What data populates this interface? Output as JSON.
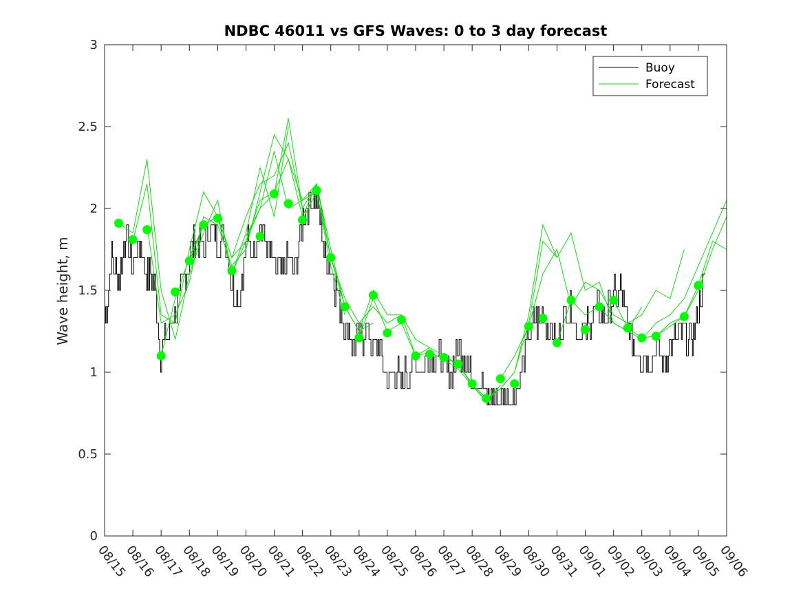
{
  "chart_data": {
    "type": "line",
    "title": "NDBC 46011 vs GFS Waves: 0 to 3 day forecast",
    "xlabel": "",
    "ylabel": "Wave height, m",
    "xlim": [
      0,
      22
    ],
    "ylim": [
      0,
      3
    ],
    "yticks": [
      0,
      0.5,
      1,
      1.5,
      2,
      2.5,
      3
    ],
    "ytick_labels": [
      "0",
      "0.5",
      "1",
      "1.5",
      "2",
      "2.5",
      "3"
    ],
    "xticks": [
      0,
      1,
      2,
      3,
      4,
      5,
      6,
      7,
      8,
      9,
      10,
      11,
      12,
      13,
      14,
      15,
      16,
      17,
      18,
      19,
      20,
      21,
      22
    ],
    "xtick_labels": [
      "08/15",
      "08/16",
      "08/17",
      "08/18",
      "08/19",
      "08/20",
      "08/21",
      "08/22",
      "08/23",
      "08/24",
      "08/25",
      "08/26",
      "08/27",
      "08/28",
      "08/29",
      "08/30",
      "08/31",
      "09/01",
      "09/02",
      "09/03",
      "09/04",
      "09/05",
      "09/06"
    ],
    "legend": {
      "position": "top-right",
      "entries": [
        {
          "label": "Buoy",
          "color": "#000000"
        },
        {
          "label": "Forecast",
          "color": "#00e000"
        }
      ]
    },
    "colors": {
      "buoy": "#000000",
      "forecast": "#00ff00",
      "forecast_line": "#11dd11"
    },
    "buoy_series": {
      "name": "Buoy",
      "x": [
        0,
        0.25,
        0.5,
        0.75,
        1,
        1.25,
        1.5,
        1.75,
        2,
        2.25,
        2.5,
        2.75,
        3,
        3.25,
        3.5,
        3.75,
        4,
        4.25,
        4.5,
        4.75,
        5,
        5.25,
        5.5,
        5.75,
        6,
        6.25,
        6.5,
        6.75,
        7,
        7.25,
        7.5,
        7.75,
        8,
        8.25,
        8.5,
        8.75,
        9,
        9.25,
        9.5,
        9.75,
        10,
        10.25,
        10.5,
        10.75,
        11,
        11.25,
        11.5,
        11.75,
        12,
        12.25,
        12.5,
        12.75,
        13,
        13.25,
        13.5,
        13.75,
        14,
        14.25,
        14.5,
        14.75,
        15,
        15.25,
        15.5,
        15.75,
        16,
        16.25,
        16.5,
        16.75,
        17,
        17.25,
        17.5,
        17.75,
        18,
        18.25,
        18.5,
        18.75,
        19,
        19.25,
        19.5,
        19.75,
        20,
        20.25,
        20.5,
        20.75,
        21,
        21.25
      ],
      "y": [
        1.3,
        1.7,
        1.55,
        1.85,
        1.65,
        1.8,
        1.6,
        1.55,
        1.1,
        1.25,
        1.35,
        1.5,
        1.7,
        1.8,
        1.75,
        1.9,
        1.75,
        1.85,
        1.5,
        1.45,
        1.8,
        1.75,
        1.9,
        1.75,
        1.65,
        1.6,
        1.7,
        1.6,
        1.95,
        2.05,
        2.1,
        1.75,
        1.65,
        1.45,
        1.3,
        1.2,
        1.2,
        1.25,
        1.15,
        1.15,
        0.95,
        1.0,
        0.95,
        1.0,
        1.05,
        1.0,
        1.1,
        1.1,
        1.05,
        1.0,
        1.15,
        1.1,
        0.95,
        0.95,
        0.85,
        0.85,
        0.85,
        0.85,
        0.85,
        1.0,
        1.25,
        1.3,
        1.35,
        1.25,
        1.2,
        1.35,
        1.4,
        1.25,
        1.25,
        1.35,
        1.4,
        1.35,
        1.45,
        1.5,
        1.3,
        1.15,
        1.1,
        1.1,
        1.15,
        1.05,
        1.15,
        1.2,
        1.25,
        1.2,
        1.4,
        1.6
      ]
    },
    "forecast_series": [
      {
        "name": "Forecast",
        "x": [
          0.5,
          1.0,
          1.5,
          2.0,
          2.5,
          3.0,
          3.5,
          4.0,
          4.5,
          5.0,
          5.5,
          6.0,
          6.5
        ],
        "y": [
          1.91,
          1.85,
          2.3,
          1.5,
          1.2,
          1.6,
          1.85,
          2.05,
          1.6,
          1.85,
          2.25,
          1.95,
          2.5
        ]
      },
      {
        "name": "Forecast",
        "x": [
          1.0,
          1.5,
          2.0,
          2.5,
          3.0,
          3.5,
          4.0,
          4.5,
          5.0,
          5.5,
          6.0,
          6.5,
          7.0
        ],
        "y": [
          1.8,
          2.15,
          1.35,
          1.3,
          1.75,
          2.1,
          1.95,
          1.7,
          1.95,
          2.15,
          2.2,
          2.4,
          2.0
        ]
      },
      {
        "name": "Forecast",
        "x": [
          1.5,
          2.0,
          2.5,
          3.0,
          3.5,
          4.0,
          4.5,
          5.0,
          5.5,
          6.0,
          6.5,
          7.0,
          7.5,
          8.0
        ],
        "y": [
          1.9,
          1.3,
          1.35,
          1.55,
          1.95,
          1.9,
          1.65,
          1.75,
          2.1,
          2.45,
          2.3,
          2.05,
          2.15,
          1.7
        ]
      },
      {
        "name": "Forecast",
        "x": [
          2.0,
          2.5,
          3.0,
          3.5,
          4.0,
          4.5,
          5.0,
          5.5,
          6.0,
          6.5,
          7.0,
          7.5,
          8.0,
          8.5
        ],
        "y": [
          1.1,
          1.45,
          1.7,
          1.9,
          1.95,
          1.6,
          1.8,
          2.0,
          2.35,
          2.0,
          2.05,
          2.1,
          1.65,
          1.35
        ]
      },
      {
        "name": "Forecast",
        "x": [
          3.0,
          3.5,
          4.0,
          4.5,
          5.0,
          5.5,
          6.0,
          6.5,
          7.0,
          7.5,
          8.0,
          8.5,
          9.0,
          9.5
        ],
        "y": [
          1.68,
          1.9,
          1.95,
          1.7,
          1.8,
          2.05,
          2.1,
          2.3,
          1.95,
          2.15,
          1.75,
          1.4,
          1.25,
          1.3
        ]
      },
      {
        "name": "Forecast",
        "x": [
          5.0,
          5.5,
          6.0,
          6.5,
          7.0,
          7.5,
          8.0,
          8.5,
          9.0,
          9.5,
          10.0,
          10.5,
          11.0,
          11.5
        ],
        "y": [
          1.83,
          2.0,
          2.09,
          2.55,
          2.0,
          2.15,
          1.7,
          1.45,
          1.3,
          1.4,
          1.3,
          1.35,
          1.2,
          1.15
        ]
      },
      {
        "name": "Forecast",
        "x": [
          7.0,
          7.5,
          8.0,
          8.5,
          9.0,
          9.5,
          10.0,
          10.5,
          11.0,
          11.5,
          12.0,
          12.5,
          13.0,
          13.5,
          14.0
        ],
        "y": [
          1.93,
          2.1,
          1.7,
          1.4,
          1.25,
          1.5,
          1.35,
          1.35,
          1.1,
          1.15,
          1.1,
          1.05,
          0.92,
          0.82,
          0.92
        ]
      },
      {
        "name": "Forecast",
        "x": [
          9.0,
          9.5,
          10.0,
          10.5,
          11.0,
          11.5,
          12.0,
          12.5,
          13.0,
          13.5,
          14.0,
          14.5,
          15.0,
          15.5,
          16.0
        ],
        "y": [
          1.21,
          1.45,
          1.25,
          1.3,
          1.1,
          1.12,
          1.08,
          1.02,
          0.92,
          0.83,
          0.9,
          1.0,
          1.3,
          1.8,
          1.7
        ]
      },
      {
        "name": "Forecast",
        "x": [
          12.0,
          12.5,
          13.0,
          13.5,
          14.0,
          14.5,
          15.0,
          15.5,
          16.0,
          16.5,
          17.0,
          17.5,
          18.0,
          18.5,
          19.0
        ],
        "y": [
          1.09,
          1.05,
          0.93,
          0.84,
          0.9,
          1.0,
          1.35,
          1.9,
          1.7,
          1.85,
          1.5,
          1.55,
          1.3,
          1.25,
          1.4
        ]
      },
      {
        "name": "Forecast",
        "x": [
          14.0,
          14.5,
          15.0,
          15.5,
          16.0,
          16.5,
          17.0,
          17.5,
          18.0,
          18.5,
          19.0,
          19.5,
          20.0,
          20.5
        ],
        "y": [
          0.96,
          1.1,
          1.28,
          1.6,
          1.75,
          1.4,
          1.55,
          1.5,
          1.35,
          1.3,
          1.35,
          1.5,
          1.45,
          1.75
        ]
      },
      {
        "name": "Forecast",
        "x": [
          16.0,
          16.5,
          17.0,
          17.5,
          18.0,
          18.5,
          19.0,
          19.5,
          20.0,
          20.5,
          21.0,
          21.5,
          22.0
        ],
        "y": [
          1.18,
          1.44,
          1.35,
          1.4,
          1.3,
          1.25,
          1.2,
          1.3,
          1.35,
          1.45,
          1.65,
          1.85,
          2.05
        ]
      },
      {
        "name": "Forecast",
        "x": [
          18.0,
          18.5,
          19.0,
          19.5,
          20.0,
          20.5,
          21.0,
          21.5,
          22.0
        ],
        "y": [
          1.44,
          1.27,
          1.21,
          1.22,
          1.3,
          1.34,
          1.5,
          1.75,
          1.95
        ]
      },
      {
        "name": "Forecast",
        "x": [
          19.0,
          19.5,
          20.0,
          20.5,
          21.0,
          21.5,
          22.0
        ],
        "y": [
          1.21,
          1.22,
          1.28,
          1.34,
          1.53,
          1.8,
          1.75
        ]
      }
    ],
    "forecast_points": {
      "name": "Forecast",
      "x": [
        0.5,
        1.0,
        1.5,
        2.0,
        2.5,
        3.0,
        3.5,
        4.0,
        4.5,
        5.5,
        6.0,
        6.5,
        7.0,
        7.5,
        8.0,
        8.5,
        9.0,
        9.5,
        10.0,
        10.5,
        11.0,
        11.5,
        12.0,
        12.5,
        13.0,
        13.5,
        14.0,
        14.5,
        15.0,
        15.5,
        16.0,
        16.5,
        17.0,
        17.5,
        18.0,
        18.5,
        19.0,
        19.5,
        20.5,
        21.0
      ],
      "y": [
        1.91,
        1.81,
        1.87,
        1.1,
        1.49,
        1.68,
        1.9,
        1.94,
        1.62,
        1.83,
        2.09,
        2.03,
        1.93,
        2.11,
        1.7,
        1.4,
        1.21,
        1.47,
        1.24,
        1.32,
        1.1,
        1.11,
        1.09,
        1.05,
        0.93,
        0.84,
        0.96,
        0.93,
        1.28,
        1.33,
        1.18,
        1.44,
        1.26,
        1.4,
        1.44,
        1.27,
        1.21,
        1.22,
        1.34,
        1.53
      ]
    }
  }
}
